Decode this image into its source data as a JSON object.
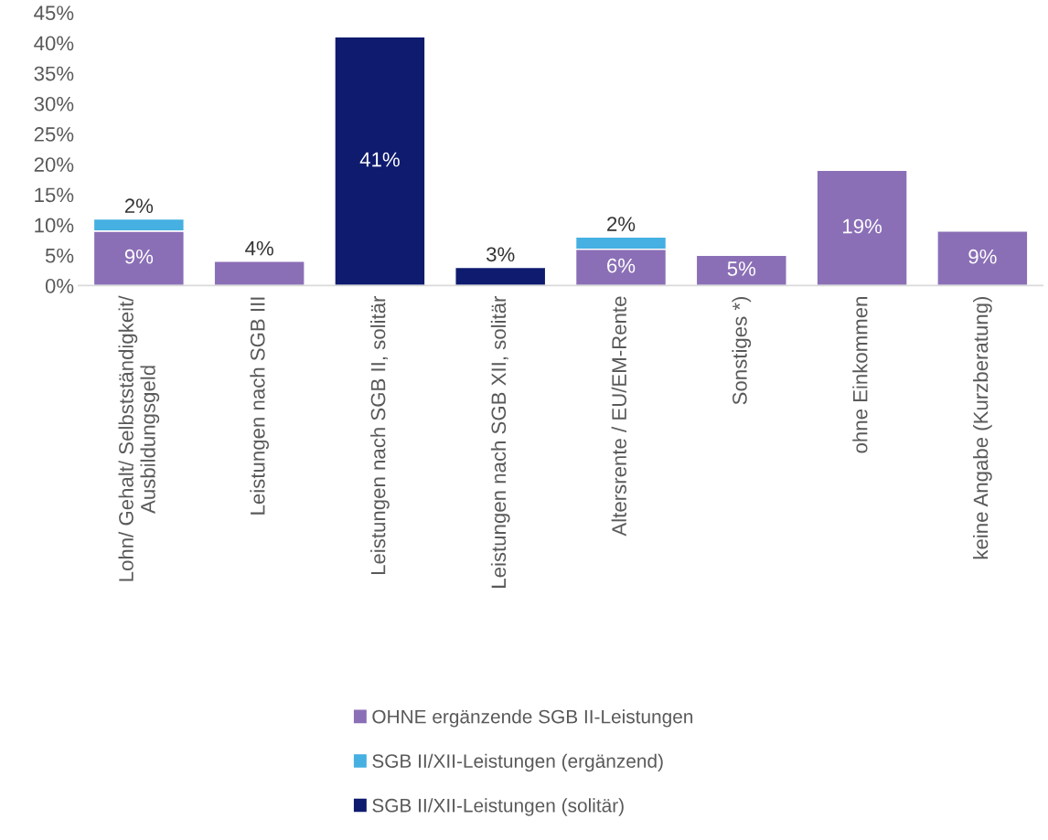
{
  "chart_data": {
    "type": "bar",
    "stacked": true,
    "categories": [
      "Lohn/ Gehalt/ Selbstständigkeit/\nAusbildungsgeld",
      "Leistungen nach SGB III",
      "Leistungen nach SGB II, solitär",
      "Leistungen nach SGB XII, solitär",
      "Altersrente / EU/EM-Rente",
      "Sonstiges *)",
      "ohne Einkommen",
      "keine Angabe (Kurzberatung)"
    ],
    "series": [
      {
        "name": "OHNE ergänzende SGB II-Leistungen",
        "color": "#8b6fb6",
        "values": [
          9,
          4,
          null,
          null,
          6,
          5,
          19,
          9
        ],
        "value_labels": [
          "9%",
          "4%",
          null,
          null,
          "6%",
          "5%",
          "19%",
          "9%"
        ]
      },
      {
        "name": "SGB II/XII-Leistungen (ergänzend)",
        "color": "#45b0e1",
        "values": [
          2,
          null,
          null,
          null,
          2,
          null,
          null,
          null
        ],
        "value_labels": [
          "2%",
          null,
          null,
          null,
          "2%",
          null,
          null,
          null
        ]
      },
      {
        "name": "SGB II/XII-Leistungen (solitär)",
        "color": "#0f1b6e",
        "values": [
          null,
          null,
          41,
          3,
          null,
          null,
          null,
          null
        ],
        "value_labels": [
          null,
          null,
          "41%",
          "3%",
          null,
          null,
          null,
          null
        ]
      }
    ],
    "ylim": [
      0,
      45
    ],
    "yticks": [
      {
        "value": 0,
        "label": "0%"
      },
      {
        "value": 5,
        "label": "5%"
      },
      {
        "value": 10,
        "label": "10%"
      },
      {
        "value": 15,
        "label": "15%"
      },
      {
        "value": 20,
        "label": "20%"
      },
      {
        "value": 25,
        "label": "25%"
      },
      {
        "value": 30,
        "label": "30%"
      },
      {
        "value": 35,
        "label": "35%"
      },
      {
        "value": 40,
        "label": "40%"
      },
      {
        "value": 45,
        "label": "45%"
      }
    ],
    "grid": false,
    "legend": "bottom"
  }
}
